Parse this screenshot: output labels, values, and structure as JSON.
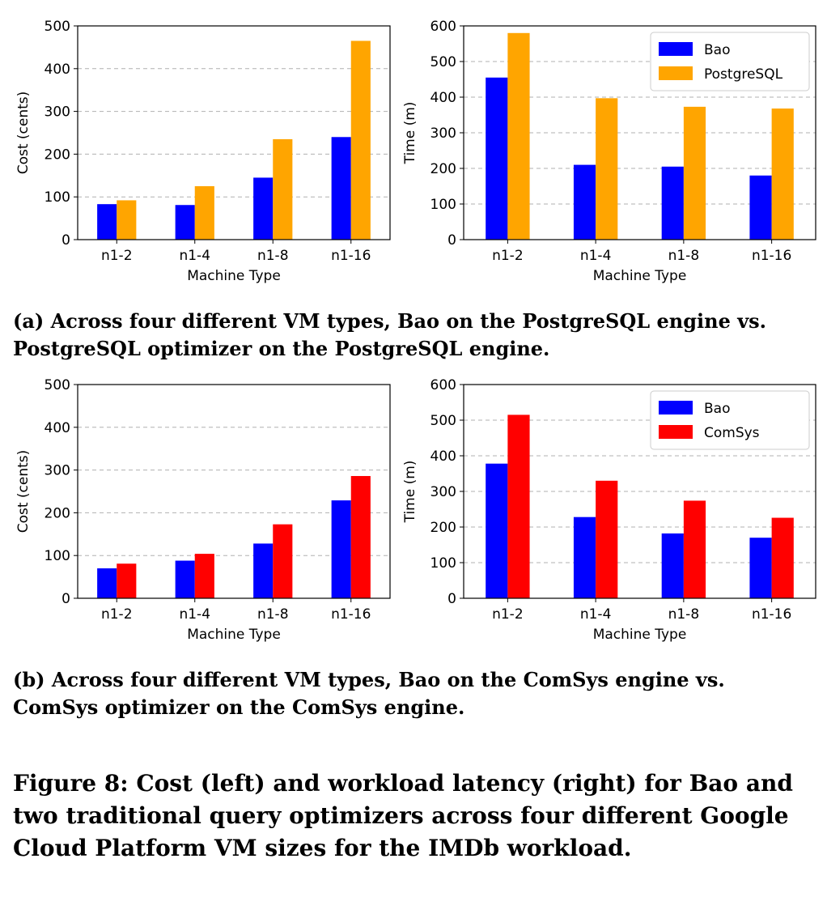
{
  "chart_data": [
    {
      "id": "a-left",
      "type": "bar",
      "categories": [
        "n1-2",
        "n1-4",
        "n1-8",
        "n1-16"
      ],
      "series": [
        {
          "name": "Bao",
          "values": [
            83,
            81,
            145,
            240
          ],
          "color": "#0000ff"
        },
        {
          "name": "PostgreSQL",
          "values": [
            92,
            125,
            235,
            465
          ],
          "color": "#ffa500"
        }
      ],
      "xlabel": "Machine Type",
      "ylabel": "Cost (cents)",
      "ylim": [
        0,
        500
      ],
      "yticks": [
        0,
        100,
        200,
        300,
        400,
        500
      ],
      "grid": true,
      "legend": "none"
    },
    {
      "id": "a-right",
      "type": "bar",
      "categories": [
        "n1-2",
        "n1-4",
        "n1-8",
        "n1-16"
      ],
      "series": [
        {
          "name": "Bao",
          "values": [
            455,
            210,
            205,
            180
          ],
          "color": "#0000ff"
        },
        {
          "name": "PostgreSQL",
          "values": [
            580,
            397,
            373,
            368
          ],
          "color": "#ffa500"
        }
      ],
      "xlabel": "Machine Type",
      "ylabel": "Time (m)",
      "ylim": [
        0,
        600
      ],
      "yticks": [
        0,
        100,
        200,
        300,
        400,
        500,
        600
      ],
      "grid": true,
      "legend": "top-right"
    },
    {
      "id": "b-left",
      "type": "bar",
      "categories": [
        "n1-2",
        "n1-4",
        "n1-8",
        "n1-16"
      ],
      "series": [
        {
          "name": "Bao",
          "values": [
            70,
            88,
            128,
            229
          ],
          "color": "#0000ff"
        },
        {
          "name": "ComSys",
          "values": [
            81,
            104,
            173,
            286
          ],
          "color": "#ff0000"
        }
      ],
      "xlabel": "Machine Type",
      "ylabel": "Cost (cents)",
      "ylim": [
        0,
        500
      ],
      "yticks": [
        0,
        100,
        200,
        300,
        400,
        500
      ],
      "grid": true,
      "legend": "none"
    },
    {
      "id": "b-right",
      "type": "bar",
      "categories": [
        "n1-2",
        "n1-4",
        "n1-8",
        "n1-16"
      ],
      "series": [
        {
          "name": "Bao",
          "values": [
            378,
            228,
            182,
            170
          ],
          "color": "#0000ff"
        },
        {
          "name": "ComSys",
          "values": [
            515,
            330,
            274,
            226
          ],
          "color": "#ff0000"
        }
      ],
      "xlabel": "Machine Type",
      "ylabel": "Time (m)",
      "ylim": [
        0,
        600
      ],
      "yticks": [
        0,
        100,
        200,
        300,
        400,
        500,
        600
      ],
      "grid": true,
      "legend": "top-right"
    }
  ],
  "captions": {
    "a": "(a) Across four different VM types, Bao on the PostgreSQL engine vs. PostgreSQL optimizer on the PostgreSQL engine.",
    "b": "(b) Across four different VM types, Bao on the ComSys engine vs. ComSys optimizer on the ComSys engine.",
    "figure": "Figure 8: Cost (left) and workload latency (right) for Bao and two traditional query optimizers across four different Google Cloud Platform VM sizes for the IMDb workload."
  }
}
